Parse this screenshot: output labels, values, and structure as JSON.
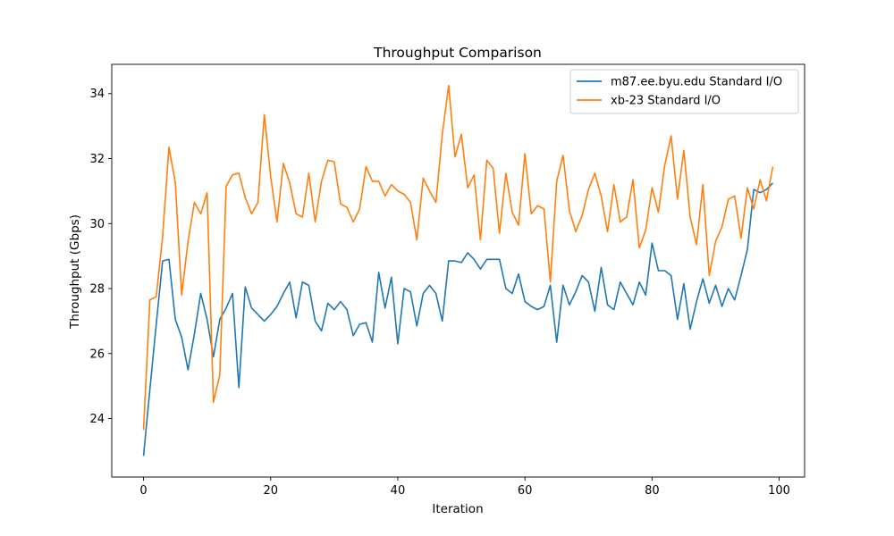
{
  "chart_data": {
    "type": "line",
    "title": "Throughput Comparison",
    "xlabel": "Iteration",
    "ylabel": "Throughput (Gbps)",
    "xlim": [
      -5,
      104
    ],
    "ylim": [
      22.2,
      34.9
    ],
    "xticks": [
      0,
      20,
      40,
      60,
      80,
      100
    ],
    "yticks": [
      24,
      26,
      28,
      30,
      32,
      34
    ],
    "grid": false,
    "legend_position": "top-right",
    "series": [
      {
        "name": "m87.ee.byu.edu Standard I/O",
        "color": "#1f77b4",
        "values": [
          22.85,
          24.9,
          26.9,
          28.85,
          28.9,
          27.05,
          26.5,
          25.5,
          26.6,
          27.85,
          27.05,
          25.9,
          27.05,
          27.4,
          27.85,
          24.95,
          28.05,
          27.4,
          27.2,
          27.0,
          27.2,
          27.45,
          27.85,
          28.2,
          27.1,
          28.2,
          28.1,
          27.0,
          26.7,
          27.55,
          27.35,
          27.6,
          27.35,
          26.55,
          26.9,
          26.95,
          26.35,
          28.5,
          27.4,
          28.35,
          26.3,
          28.0,
          27.9,
          26.85,
          27.85,
          28.1,
          27.85,
          27.0,
          28.85,
          28.85,
          28.8,
          29.1,
          28.9,
          28.6,
          28.9,
          28.9,
          28.9,
          28.0,
          27.85,
          28.45,
          27.6,
          27.45,
          27.35,
          27.45,
          28.1,
          26.35,
          28.1,
          27.5,
          27.9,
          28.4,
          28.2,
          27.3,
          28.65,
          27.5,
          27.35,
          28.2,
          27.85,
          27.5,
          28.2,
          27.8,
          29.4,
          28.55,
          28.55,
          28.4,
          27.05,
          28.15,
          26.75,
          27.6,
          28.3,
          27.55,
          28.1,
          27.45,
          28.0,
          27.65,
          28.4,
          29.2,
          31.05,
          30.95,
          31.05,
          31.25
        ]
      },
      {
        "name": "xb-23 Standard I/O",
        "color": "#ff7f0e",
        "values": [
          23.65,
          27.65,
          27.75,
          29.6,
          32.35,
          31.25,
          27.8,
          29.45,
          30.65,
          30.3,
          30.95,
          24.5,
          25.35,
          31.15,
          31.5,
          31.55,
          30.8,
          30.3,
          30.65,
          33.35,
          31.45,
          30.05,
          31.85,
          31.25,
          30.3,
          30.2,
          31.55,
          30.05,
          31.3,
          31.95,
          31.9,
          30.6,
          30.5,
          30.05,
          30.45,
          31.75,
          31.3,
          31.3,
          30.85,
          31.2,
          31.0,
          30.9,
          30.65,
          29.5,
          31.4,
          31.0,
          30.65,
          32.75,
          34.25,
          32.05,
          32.75,
          31.1,
          31.5,
          29.5,
          31.95,
          31.7,
          29.7,
          31.55,
          30.35,
          29.95,
          32.15,
          30.3,
          30.55,
          30.45,
          28.2,
          31.3,
          32.1,
          30.4,
          29.75,
          30.25,
          31.05,
          31.55,
          30.85,
          29.75,
          31.2,
          30.05,
          30.2,
          31.35,
          29.25,
          29.8,
          31.1,
          30.35,
          31.8,
          32.7,
          30.75,
          32.25,
          30.2,
          29.35,
          31.2,
          28.4,
          29.45,
          29.9,
          30.75,
          30.85,
          29.55,
          31.1,
          30.45,
          31.35,
          30.7,
          31.75
        ]
      }
    ]
  }
}
